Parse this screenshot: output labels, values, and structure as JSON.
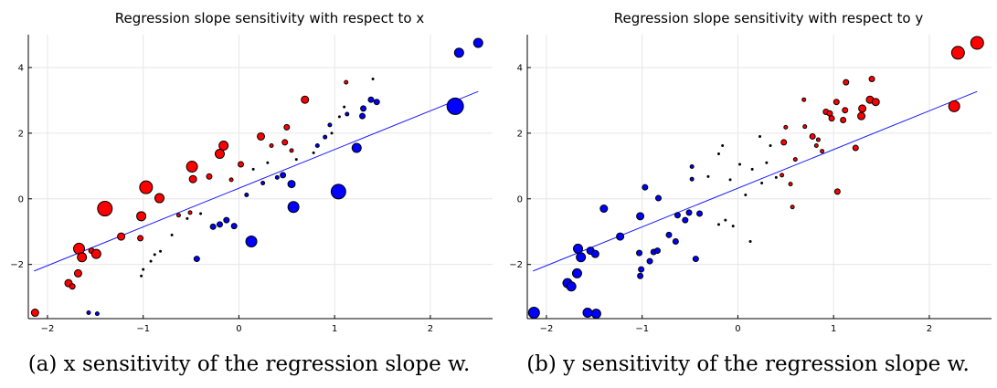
{
  "chart_data": [
    {
      "type": "scatter",
      "title": "Regression slope sensitivity with respect to x",
      "caption": "(a) x sensitivity of the regression slope w.",
      "xlim": [
        -2.2,
        2.65
      ],
      "ylim": [
        -3.65,
        5.0
      ],
      "xticks": [
        -2,
        -1,
        0,
        1,
        2
      ],
      "yticks": [
        -2,
        0,
        2,
        4
      ],
      "xtick_labels": [
        "−2",
        "−1",
        "0",
        "1",
        "2"
      ],
      "ytick_labels": [
        "−2",
        "0",
        "2",
        "4"
      ],
      "grid": true,
      "colors": {
        "positive": "#ff0000",
        "negative": "#0000ff",
        "line": "#1a1aff"
      },
      "regression_line": {
        "x": [
          -2.14,
          2.5
        ],
        "y": [
          -2.2,
          3.27
        ]
      },
      "points": [
        {
          "x": -2.13,
          "y": -3.47,
          "s": 4,
          "c": "red"
        },
        {
          "x": -1.78,
          "y": -2.57,
          "s": 4,
          "c": "red"
        },
        {
          "x": -1.74,
          "y": -2.67,
          "s": 3,
          "c": "red"
        },
        {
          "x": -1.68,
          "y": -2.27,
          "s": 4,
          "c": "red"
        },
        {
          "x": -1.67,
          "y": -1.52,
          "s": 6,
          "c": "red"
        },
        {
          "x": -1.64,
          "y": -1.78,
          "s": 5,
          "c": "red"
        },
        {
          "x": -1.54,
          "y": -1.58,
          "s": 3,
          "c": "red"
        },
        {
          "x": -1.49,
          "y": -1.68,
          "s": 5,
          "c": "red"
        },
        {
          "x": -1.4,
          "y": -0.3,
          "s": 8,
          "c": "red"
        },
        {
          "x": -1.23,
          "y": -1.15,
          "s": 4,
          "c": "red"
        },
        {
          "x": -1.03,
          "y": -1.2,
          "s": 3,
          "c": "red"
        },
        {
          "x": -1.02,
          "y": -0.53,
          "s": 5,
          "c": "red"
        },
        {
          "x": -0.97,
          "y": 0.35,
          "s": 7,
          "c": "red"
        },
        {
          "x": -0.83,
          "y": 0.02,
          "s": 5,
          "c": "red"
        },
        {
          "x": -0.63,
          "y": -0.5,
          "s": 2,
          "c": "red"
        },
        {
          "x": -0.51,
          "y": -0.42,
          "s": 2,
          "c": "red"
        },
        {
          "x": -0.49,
          "y": 0.98,
          "s": 6,
          "c": "red"
        },
        {
          "x": -0.48,
          "y": 0.6,
          "s": 4,
          "c": "red"
        },
        {
          "x": -0.31,
          "y": 0.68,
          "s": 3,
          "c": "red"
        },
        {
          "x": -0.2,
          "y": 1.37,
          "s": 5,
          "c": "red"
        },
        {
          "x": -0.16,
          "y": 1.62,
          "s": 5,
          "c": "red"
        },
        {
          "x": -0.08,
          "y": 0.58,
          "s": 2,
          "c": "red"
        },
        {
          "x": 0.02,
          "y": 1.05,
          "s": 3,
          "c": "red"
        },
        {
          "x": 0.23,
          "y": 1.9,
          "s": 4,
          "c": "red"
        },
        {
          "x": 0.34,
          "y": 1.62,
          "s": 2,
          "c": "red"
        },
        {
          "x": 0.48,
          "y": 1.72,
          "s": 3,
          "c": "red"
        },
        {
          "x": 0.5,
          "y": 2.18,
          "s": 3,
          "c": "red"
        },
        {
          "x": 0.55,
          "y": 1.47,
          "s": 2,
          "c": "red"
        },
        {
          "x": 0.69,
          "y": 3.02,
          "s": 4,
          "c": "red"
        },
        {
          "x": 1.12,
          "y": 3.55,
          "s": 2,
          "c": "red"
        },
        {
          "x": -1.57,
          "y": -3.47,
          "s": 2,
          "c": "blue"
        },
        {
          "x": -1.48,
          "y": -3.5,
          "s": 2,
          "c": "blue"
        },
        {
          "x": -0.44,
          "y": -1.83,
          "s": 3,
          "c": "blue"
        },
        {
          "x": -0.27,
          "y": -0.85,
          "s": 3,
          "c": "blue"
        },
        {
          "x": -0.2,
          "y": -0.78,
          "s": 3,
          "c": "blue"
        },
        {
          "x": -0.13,
          "y": -0.65,
          "s": 3,
          "c": "blue"
        },
        {
          "x": -0.05,
          "y": -0.83,
          "s": 3,
          "c": "blue"
        },
        {
          "x": 0.08,
          "y": 0.12,
          "s": 2,
          "c": "blue"
        },
        {
          "x": 0.13,
          "y": -1.3,
          "s": 6,
          "c": "blue"
        },
        {
          "x": 0.25,
          "y": 0.48,
          "s": 2,
          "c": "blue"
        },
        {
          "x": 0.4,
          "y": 0.65,
          "s": 2,
          "c": "blue"
        },
        {
          "x": 0.46,
          "y": 0.72,
          "s": 3,
          "c": "blue"
        },
        {
          "x": 0.55,
          "y": 0.45,
          "s": 4,
          "c": "blue"
        },
        {
          "x": 0.57,
          "y": -0.25,
          "s": 6,
          "c": "blue"
        },
        {
          "x": 0.82,
          "y": 1.62,
          "s": 2,
          "c": "blue"
        },
        {
          "x": 0.9,
          "y": 1.88,
          "s": 2,
          "c": "blue"
        },
        {
          "x": 0.95,
          "y": 2.25,
          "s": 2,
          "c": "blue"
        },
        {
          "x": 1.04,
          "y": 0.22,
          "s": 8,
          "c": "blue"
        },
        {
          "x": 1.13,
          "y": 2.58,
          "s": 2,
          "c": "blue"
        },
        {
          "x": 1.23,
          "y": 1.55,
          "s": 5,
          "c": "blue"
        },
        {
          "x": 1.29,
          "y": 2.52,
          "s": 3,
          "c": "blue"
        },
        {
          "x": 1.3,
          "y": 2.75,
          "s": 3,
          "c": "blue"
        },
        {
          "x": 1.38,
          "y": 3.02,
          "s": 3,
          "c": "blue"
        },
        {
          "x": 1.44,
          "y": 2.95,
          "s": 3,
          "c": "blue"
        },
        {
          "x": 2.26,
          "y": 2.82,
          "s": 9,
          "c": "blue"
        },
        {
          "x": 2.3,
          "y": 4.45,
          "s": 5,
          "c": "blue"
        },
        {
          "x": 2.5,
          "y": 4.75,
          "s": 5,
          "c": "blue"
        },
        {
          "x": -1.02,
          "y": -2.35,
          "s": 1,
          "c": "black"
        },
        {
          "x": -1.0,
          "y": -2.15,
          "s": 1,
          "c": "black"
        },
        {
          "x": -0.92,
          "y": -1.9,
          "s": 1,
          "c": "black"
        },
        {
          "x": -0.88,
          "y": -1.7,
          "s": 1,
          "c": "black"
        },
        {
          "x": -0.82,
          "y": -1.6,
          "s": 1,
          "c": "black"
        },
        {
          "x": -0.7,
          "y": -1.1,
          "s": 1,
          "c": "black"
        },
        {
          "x": -0.54,
          "y": -0.6,
          "s": 1,
          "c": "black"
        },
        {
          "x": -0.4,
          "y": -0.45,
          "s": 1,
          "c": "black"
        },
        {
          "x": 0.15,
          "y": 0.9,
          "s": 1,
          "c": "black"
        },
        {
          "x": 0.3,
          "y": 1.1,
          "s": 1,
          "c": "black"
        },
        {
          "x": 0.6,
          "y": 1.2,
          "s": 1,
          "c": "black"
        },
        {
          "x": 0.78,
          "y": 1.4,
          "s": 1,
          "c": "black"
        },
        {
          "x": 0.97,
          "y": 2.0,
          "s": 1,
          "c": "black"
        },
        {
          "x": 1.05,
          "y": 2.5,
          "s": 1,
          "c": "black"
        },
        {
          "x": 1.1,
          "y": 2.8,
          "s": 1,
          "c": "black"
        },
        {
          "x": 1.4,
          "y": 3.65,
          "s": 1,
          "c": "black"
        }
      ]
    },
    {
      "type": "scatter",
      "title": "Regression slope sensitivity with respect to y",
      "caption": "(b) y sensitivity of the regression slope w.",
      "xlim": [
        -2.2,
        2.65
      ],
      "ylim": [
        -3.65,
        5.0
      ],
      "xticks": [
        -2,
        -1,
        0,
        1,
        2
      ],
      "yticks": [
        -2,
        0,
        2,
        4
      ],
      "xtick_labels": [
        "−2",
        "−1",
        "0",
        "1",
        "2"
      ],
      "ytick_labels": [
        "−2",
        "0",
        "2",
        "4"
      ],
      "grid": true,
      "colors": {
        "positive": "#ff0000",
        "negative": "#0000ff",
        "line": "#1a1aff"
      },
      "regression_line": {
        "x": [
          -2.14,
          2.5
        ],
        "y": [
          -2.2,
          3.27
        ]
      },
      "points": [
        {
          "x": -2.13,
          "y": -3.47,
          "s": 6,
          "c": "blue"
        },
        {
          "x": -1.78,
          "y": -2.57,
          "s": 5,
          "c": "blue"
        },
        {
          "x": -1.74,
          "y": -2.67,
          "s": 5,
          "c": "blue"
        },
        {
          "x": -1.68,
          "y": -2.27,
          "s": 5,
          "c": "blue"
        },
        {
          "x": -1.67,
          "y": -1.52,
          "s": 5,
          "c": "blue"
        },
        {
          "x": -1.64,
          "y": -1.78,
          "s": 5,
          "c": "blue"
        },
        {
          "x": -1.57,
          "y": -3.47,
          "s": 5,
          "c": "blue"
        },
        {
          "x": -1.54,
          "y": -1.58,
          "s": 4,
          "c": "blue"
        },
        {
          "x": -1.49,
          "y": -1.68,
          "s": 4,
          "c": "blue"
        },
        {
          "x": -1.48,
          "y": -3.5,
          "s": 5,
          "c": "blue"
        },
        {
          "x": -1.4,
          "y": -0.3,
          "s": 4,
          "c": "blue"
        },
        {
          "x": -1.23,
          "y": -1.15,
          "s": 4,
          "c": "blue"
        },
        {
          "x": -1.03,
          "y": -1.65,
          "s": 3,
          "c": "blue"
        },
        {
          "x": -1.02,
          "y": -2.35,
          "s": 3,
          "c": "blue"
        },
        {
          "x": -1.01,
          "y": -2.15,
          "s": 3,
          "c": "blue"
        },
        {
          "x": -1.02,
          "y": -0.53,
          "s": 4,
          "c": "blue"
        },
        {
          "x": -0.97,
          "y": 0.35,
          "s": 3,
          "c": "blue"
        },
        {
          "x": -0.92,
          "y": -1.9,
          "s": 3,
          "c": "blue"
        },
        {
          "x": -0.88,
          "y": -1.62,
          "s": 3,
          "c": "blue"
        },
        {
          "x": -0.84,
          "y": -1.58,
          "s": 3,
          "c": "blue"
        },
        {
          "x": -0.83,
          "y": 0.02,
          "s": 3,
          "c": "blue"
        },
        {
          "x": -0.72,
          "y": -1.1,
          "s": 3,
          "c": "blue"
        },
        {
          "x": -0.65,
          "y": -1.3,
          "s": 3,
          "c": "blue"
        },
        {
          "x": -0.63,
          "y": -0.5,
          "s": 3,
          "c": "blue"
        },
        {
          "x": -0.55,
          "y": -0.65,
          "s": 3,
          "c": "blue"
        },
        {
          "x": -0.51,
          "y": -0.42,
          "s": 3,
          "c": "blue"
        },
        {
          "x": -0.48,
          "y": 0.98,
          "s": 2,
          "c": "blue"
        },
        {
          "x": -0.48,
          "y": 0.6,
          "s": 2,
          "c": "blue"
        },
        {
          "x": -0.44,
          "y": -1.83,
          "s": 3,
          "c": "blue"
        },
        {
          "x": -0.4,
          "y": -0.45,
          "s": 3,
          "c": "blue"
        },
        {
          "x": 0.46,
          "y": 0.72,
          "s": 2,
          "c": "red"
        },
        {
          "x": 0.48,
          "y": 1.72,
          "s": 3,
          "c": "red"
        },
        {
          "x": 0.5,
          "y": 2.18,
          "s": 2,
          "c": "red"
        },
        {
          "x": 0.55,
          "y": 0.45,
          "s": 2,
          "c": "red"
        },
        {
          "x": 0.57,
          "y": -0.25,
          "s": 2,
          "c": "red"
        },
        {
          "x": 0.6,
          "y": 1.2,
          "s": 2,
          "c": "red"
        },
        {
          "x": 0.69,
          "y": 3.02,
          "s": 2,
          "c": "red"
        },
        {
          "x": 0.7,
          "y": 2.2,
          "s": 2,
          "c": "red"
        },
        {
          "x": 0.78,
          "y": 1.9,
          "s": 3,
          "c": "red"
        },
        {
          "x": 0.82,
          "y": 1.62,
          "s": 2,
          "c": "red"
        },
        {
          "x": 0.84,
          "y": 1.8,
          "s": 2,
          "c": "red"
        },
        {
          "x": 0.88,
          "y": 1.45,
          "s": 2,
          "c": "red"
        },
        {
          "x": 0.92,
          "y": 2.65,
          "s": 3,
          "c": "red"
        },
        {
          "x": 0.96,
          "y": 2.6,
          "s": 3,
          "c": "red"
        },
        {
          "x": 0.98,
          "y": 2.45,
          "s": 3,
          "c": "red"
        },
        {
          "x": 1.03,
          "y": 2.95,
          "s": 3,
          "c": "red"
        },
        {
          "x": 1.04,
          "y": 0.22,
          "s": 3,
          "c": "red"
        },
        {
          "x": 1.1,
          "y": 2.4,
          "s": 3,
          "c": "red"
        },
        {
          "x": 1.12,
          "y": 2.7,
          "s": 3,
          "c": "red"
        },
        {
          "x": 1.13,
          "y": 3.55,
          "s": 3,
          "c": "red"
        },
        {
          "x": 1.23,
          "y": 1.55,
          "s": 3,
          "c": "red"
        },
        {
          "x": 1.29,
          "y": 2.52,
          "s": 4,
          "c": "red"
        },
        {
          "x": 1.3,
          "y": 2.75,
          "s": 4,
          "c": "red"
        },
        {
          "x": 1.38,
          "y": 3.02,
          "s": 4,
          "c": "red"
        },
        {
          "x": 1.4,
          "y": 3.65,
          "s": 3,
          "c": "red"
        },
        {
          "x": 1.44,
          "y": 2.95,
          "s": 4,
          "c": "red"
        },
        {
          "x": 2.26,
          "y": 2.82,
          "s": 6,
          "c": "red"
        },
        {
          "x": 2.3,
          "y": 4.45,
          "s": 7,
          "c": "red"
        },
        {
          "x": 2.5,
          "y": 4.75,
          "s": 7,
          "c": "red"
        },
        {
          "x": -0.2,
          "y": -0.78,
          "s": 1,
          "c": "black"
        },
        {
          "x": -0.13,
          "y": -0.65,
          "s": 1,
          "c": "black"
        },
        {
          "x": -0.05,
          "y": -0.83,
          "s": 1,
          "c": "black"
        },
        {
          "x": 0.13,
          "y": -1.3,
          "s": 1,
          "c": "black"
        },
        {
          "x": -0.31,
          "y": 0.68,
          "s": 1,
          "c": "black"
        },
        {
          "x": -0.2,
          "y": 1.37,
          "s": 1,
          "c": "black"
        },
        {
          "x": -0.16,
          "y": 1.62,
          "s": 1,
          "c": "black"
        },
        {
          "x": -0.08,
          "y": 0.58,
          "s": 1,
          "c": "black"
        },
        {
          "x": 0.02,
          "y": 1.05,
          "s": 1,
          "c": "black"
        },
        {
          "x": 0.08,
          "y": 0.12,
          "s": 1,
          "c": "black"
        },
        {
          "x": 0.15,
          "y": 0.9,
          "s": 1,
          "c": "black"
        },
        {
          "x": 0.23,
          "y": 1.9,
          "s": 1,
          "c": "black"
        },
        {
          "x": 0.25,
          "y": 0.48,
          "s": 1,
          "c": "black"
        },
        {
          "x": 0.3,
          "y": 1.1,
          "s": 1,
          "c": "black"
        },
        {
          "x": 0.34,
          "y": 1.62,
          "s": 1,
          "c": "black"
        },
        {
          "x": 0.4,
          "y": 0.65,
          "s": 1,
          "c": "black"
        }
      ]
    }
  ]
}
